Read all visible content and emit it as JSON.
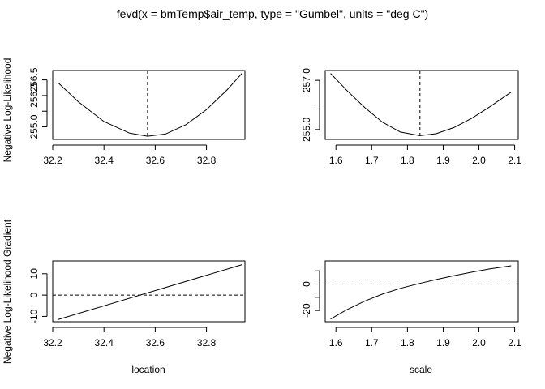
{
  "title": "fevd(x = bmTemp$air_temp, type = \"Gumbel\", units = \"deg C\")",
  "left_labels": {
    "top": "Negative Log-Likelihood",
    "bottom": "Negative Log-Likelihood Gradient"
  },
  "bottom_labels": {
    "left": "location",
    "right": "scale"
  },
  "chart_data": [
    {
      "id": "loc-loglik",
      "type": "line",
      "xlabel": "",
      "ylabel": "",
      "xlim": [
        32.2,
        32.95
      ],
      "ylim": [
        254.6,
        256.8
      ],
      "xticks": [
        32.2,
        32.4,
        32.6,
        32.8
      ],
      "xtick_labels": [
        "32.2",
        "32.4",
        "32.6",
        "32.8"
      ],
      "yticks": [
        255.0,
        255.5,
        256.0,
        256.5
      ],
      "ytick_labels": [
        "255.0",
        "",
        "256.0",
        "256.5"
      ],
      "vline": 32.57,
      "hline": null,
      "series": [
        {
          "x": [
            32.22,
            32.3,
            32.4,
            32.5,
            32.57,
            32.64,
            32.72,
            32.8,
            32.88,
            32.94
          ],
          "y": [
            256.42,
            255.8,
            255.17,
            254.8,
            254.7,
            254.77,
            255.07,
            255.55,
            256.18,
            256.72
          ]
        }
      ]
    },
    {
      "id": "scale-loglik",
      "type": "line",
      "xlabel": "",
      "ylabel": "",
      "xlim": [
        1.57,
        2.11
      ],
      "ylim": [
        254.6,
        257.4
      ],
      "xticks": [
        1.6,
        1.7,
        1.8,
        1.9,
        2.0,
        2.1
      ],
      "xtick_labels": [
        "1.6",
        "1.7",
        "1.8",
        "1.9",
        "2.0",
        "2.1"
      ],
      "yticks": [
        255.0,
        256.0,
        257.0
      ],
      "ytick_labels": [
        "255.0",
        "",
        "257.0"
      ],
      "vline": 1.835,
      "hline": null,
      "series": [
        {
          "x": [
            1.585,
            1.63,
            1.68,
            1.73,
            1.78,
            1.835,
            1.88,
            1.93,
            1.98,
            2.03,
            2.09
          ],
          "y": [
            257.28,
            256.6,
            255.9,
            255.3,
            254.9,
            254.75,
            254.83,
            255.08,
            255.46,
            255.92,
            256.52
          ]
        }
      ]
    },
    {
      "id": "loc-gradient",
      "type": "line",
      "xlabel": "location",
      "ylabel": "",
      "xlim": [
        32.2,
        32.95
      ],
      "ylim": [
        -12.5,
        16
      ],
      "xticks": [
        32.2,
        32.4,
        32.6,
        32.8
      ],
      "xtick_labels": [
        "32.2",
        "32.4",
        "32.6",
        "32.8"
      ],
      "yticks": [
        -10,
        0,
        10
      ],
      "ytick_labels": [
        "-10",
        "0",
        "10"
      ],
      "vline": null,
      "hline": 0,
      "series": [
        {
          "x": [
            32.22,
            32.94
          ],
          "y": [
            -11.5,
            14.3
          ]
        }
      ]
    },
    {
      "id": "scale-gradient",
      "type": "line",
      "xlabel": "scale",
      "ylabel": "",
      "xlim": [
        1.57,
        2.11
      ],
      "ylim": [
        -28.5,
        17.5
      ],
      "xticks": [
        1.6,
        1.7,
        1.8,
        1.9,
        2.0,
        2.1
      ],
      "xtick_labels": [
        "1.6",
        "1.7",
        "1.8",
        "1.9",
        "2.0",
        "2.1"
      ],
      "yticks": [
        -20,
        -10,
        0,
        10
      ],
      "ytick_labels": [
        "-20",
        "",
        "0",
        ""
      ],
      "vline": null,
      "hline": 0,
      "series": [
        {
          "x": [
            1.585,
            1.63,
            1.68,
            1.73,
            1.78,
            1.835,
            1.88,
            1.93,
            1.98,
            2.03,
            2.09
          ],
          "y": [
            -26.5,
            -19.5,
            -13.0,
            -7.6,
            -3.2,
            0.5,
            3.4,
            6.3,
            9.0,
            11.4,
            13.8
          ]
        }
      ]
    }
  ]
}
